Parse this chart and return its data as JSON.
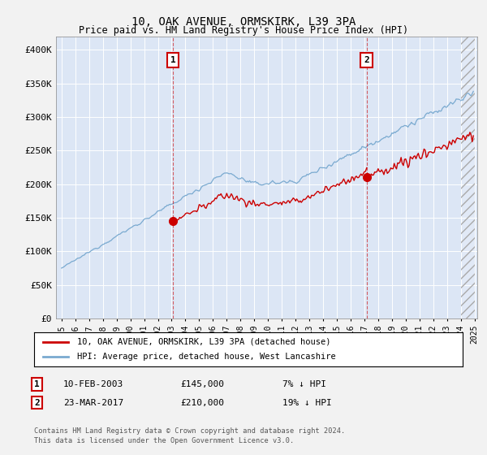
{
  "title": "10, OAK AVENUE, ORMSKIRK, L39 3PA",
  "subtitle": "Price paid vs. HM Land Registry's House Price Index (HPI)",
  "ylim": [
    0,
    420000
  ],
  "yticks": [
    0,
    50000,
    100000,
    150000,
    200000,
    250000,
    300000,
    350000,
    400000
  ],
  "ytick_labels": [
    "£0",
    "£50K",
    "£100K",
    "£150K",
    "£200K",
    "£250K",
    "£300K",
    "£350K",
    "£400K"
  ],
  "bg_color": "#dce6f5",
  "grid_color": "#ffffff",
  "hpi_color": "#7aaad0",
  "price_color": "#cc0000",
  "fig_bg": "#f2f2f2",
  "sale1_date": "10-FEB-2003",
  "sale1_price": 145000,
  "sale1_label": "7% ↓ HPI",
  "sale2_date": "23-MAR-2017",
  "sale2_price": 210000,
  "sale2_label": "19% ↓ HPI",
  "legend_line1": "10, OAK AVENUE, ORMSKIRK, L39 3PA (detached house)",
  "legend_line2": "HPI: Average price, detached house, West Lancashire",
  "footer1": "Contains HM Land Registry data © Crown copyright and database right 2024.",
  "footer2": "This data is licensed under the Open Government Licence v3.0."
}
